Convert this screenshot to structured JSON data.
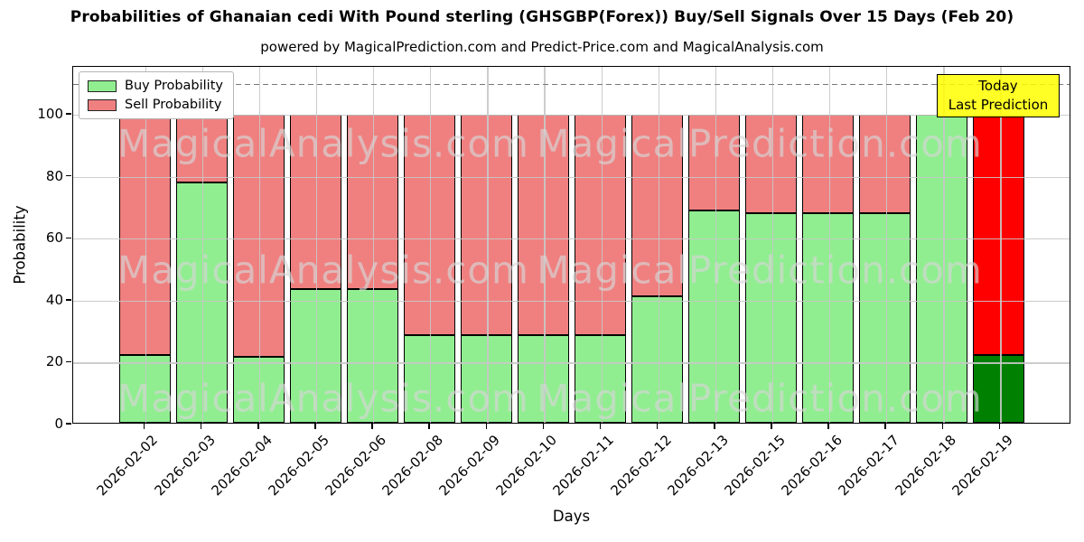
{
  "title": "Probabilities of Ghanaian cedi With Pound sterling (GHSGBP(Forex)) Buy/Sell Signals Over 15 Days (Feb 20)",
  "subtitle": "powered by MagicalPrediction.com and Predict-Price.com and MagicalAnalysis.com",
  "watermarks": {
    "left": "MagicalAnalysis.com",
    "right": "MagicalPrediction.com"
  },
  "annotation": {
    "line1": "Today",
    "line2": "Last Prediction",
    "bg_color": "#ffff00"
  },
  "legend": [
    {
      "label": "Buy Probability",
      "color": "#90ee90"
    },
    {
      "label": "Sell Probability",
      "color": "#f08080"
    }
  ],
  "colors": {
    "buy": "#90ee90",
    "sell": "#f08080",
    "last_bar_buy": "#008000",
    "last_bar_sell": "#ff0000",
    "bar_edge": "#000000",
    "grid": "#c8c8c8",
    "dashed_line": "#777777"
  },
  "chart_data": {
    "type": "bar",
    "stacked": true,
    "title": "Probabilities of Ghanaian cedi With Pound sterling (GHSGBP(Forex)) Buy/Sell Signals Over 15 Days (Feb 20)",
    "xlabel": "Days",
    "ylabel": "Probability",
    "categories": [
      "2026-02-02",
      "2026-02-03",
      "2026-02-04",
      "2026-02-05",
      "2026-02-06",
      "2026-02-08",
      "2026-02-09",
      "2026-02-10",
      "2026-02-11",
      "2026-02-12",
      "2026-02-13",
      "2026-02-15",
      "2026-02-16",
      "2026-02-17",
      "2026-02-18",
      "2026-02-19"
    ],
    "series": [
      {
        "name": "Buy Probability",
        "color": "#90ee90",
        "values": [
          22,
          78,
          21.5,
          43.5,
          43.5,
          28.5,
          28.5,
          28.5,
          28.5,
          41,
          69,
          68,
          68,
          68,
          100,
          22
        ]
      },
      {
        "name": "Sell Probability",
        "color": "#f08080",
        "values": [
          78,
          22,
          78.5,
          56.5,
          56.5,
          71.5,
          71.5,
          71.5,
          71.5,
          59,
          31,
          32,
          32,
          32,
          0,
          78
        ]
      }
    ],
    "highlight_last_bar": {
      "index": 15,
      "buy_color": "#008000",
      "sell_color": "#ff0000"
    },
    "yticks": [
      0,
      20,
      40,
      60,
      80,
      100
    ],
    "ylim": [
      0,
      115.5
    ],
    "dashed_line_y": 110,
    "grid": true,
    "legend_position": "upper left"
  }
}
